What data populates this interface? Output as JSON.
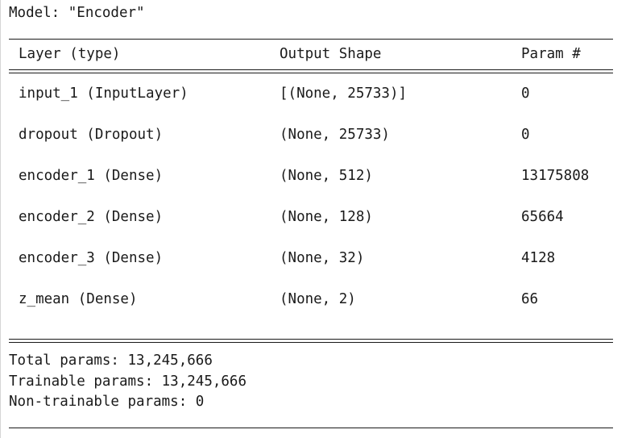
{
  "model_title": "Model: \"Encoder\"",
  "header": {
    "layer": "Layer (type)",
    "shape": "Output Shape",
    "param": "Param #"
  },
  "rows": [
    {
      "layer": "input_1 (InputLayer)",
      "shape": "[(None, 25733)]",
      "param": "0"
    },
    {
      "layer": "dropout (Dropout)",
      "shape": "(None, 25733)",
      "param": "0"
    },
    {
      "layer": "encoder_1 (Dense)",
      "shape": "(None, 512)",
      "param": "13175808"
    },
    {
      "layer": "encoder_2 (Dense)",
      "shape": "(None, 128)",
      "param": "65664"
    },
    {
      "layer": "encoder_3 (Dense)",
      "shape": "(None, 32)",
      "param": "4128"
    },
    {
      "layer": "z_mean (Dense)",
      "shape": "(None, 2)",
      "param": "66"
    }
  ],
  "summary": {
    "total": "Total params: 13,245,666",
    "trainable": "Trainable params: 13,245,666",
    "non_trainable": "Non-trainable params: 0"
  }
}
